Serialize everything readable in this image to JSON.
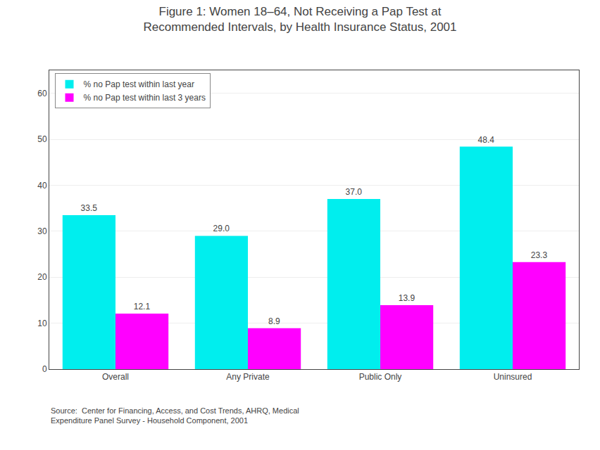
{
  "chart_data": {
    "type": "bar",
    "title": "Figure 1: Women 18–64, Not Receiving a Pap Test at\nRecommended Intervals, by Health Insurance Status, 2001",
    "categories": [
      "Overall",
      "Any Private",
      "Public Only",
      "Uninsured"
    ],
    "series": [
      {
        "name": "% no Pap test within last year",
        "color": "#00EEEE",
        "values": [
          33.5,
          29.0,
          37.0,
          48.4
        ],
        "value_labels": [
          "33.5",
          "29.0",
          "37.0",
          "48.4"
        ]
      },
      {
        "name": "% no Pap test within last 3 years",
        "color": "#FF00FF",
        "values": [
          12.1,
          8.9,
          13.9,
          23.3
        ]
      }
    ],
    "ylim": [
      0,
      65
    ],
    "yticks": [
      0,
      10,
      20,
      30,
      40,
      50,
      60
    ],
    "grid": true,
    "legend": "upper left",
    "data_labels": true,
    "annotations": [
      "Source:  Center for Financing, Access, and Cost Trends, AHRQ, Medical\nExpenditure Panel Survey - Household Component, 2001"
    ]
  }
}
